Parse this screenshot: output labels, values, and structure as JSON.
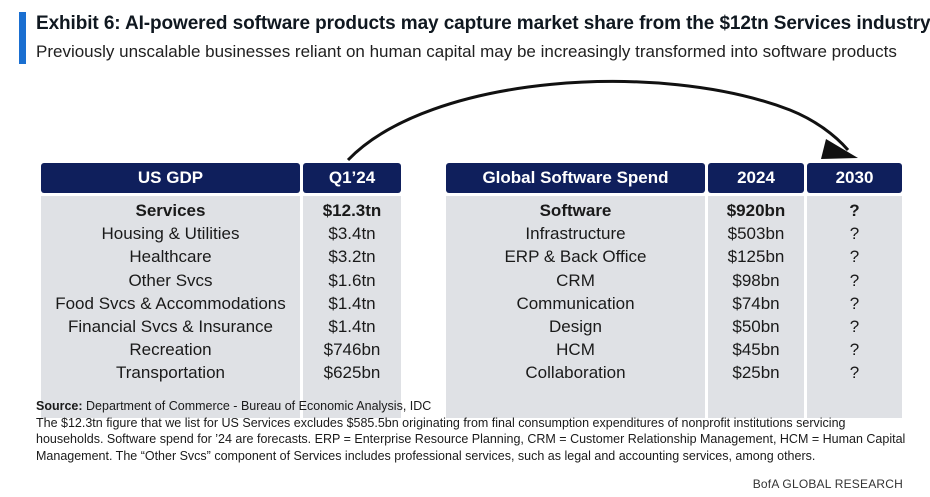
{
  "header": {
    "title": "Exhibit 6: AI-powered software products may capture market share from the $12tn Services industry",
    "subtitle": "Previously unscalable businesses reliant on human capital may be increasingly transformed into software products",
    "accent_color": "#1a6fd1"
  },
  "chart_data": [
    {
      "type": "table",
      "columns": [
        "US GDP",
        "Q1’24"
      ],
      "rows": [
        {
          "label": "Services",
          "value": "$12.3tn",
          "bold": true
        },
        {
          "label": "Housing & Utilities",
          "value": "$3.4tn"
        },
        {
          "label": "Healthcare",
          "value": "$3.2tn"
        },
        {
          "label": "Other Svcs",
          "value": "$1.6tn"
        },
        {
          "label": "Food Svcs & Accommodations",
          "value": "$1.4tn"
        },
        {
          "label": "Financial Svcs & Insurance",
          "value": "$1.4tn"
        },
        {
          "label": "Recreation",
          "value": "$746bn"
        },
        {
          "label": "Transportation",
          "value": "$625bn"
        }
      ]
    },
    {
      "type": "table",
      "columns": [
        "Global Software Spend",
        "2024",
        "2030"
      ],
      "rows": [
        {
          "label": "Software",
          "value": "$920bn",
          "future": "?",
          "bold": true
        },
        {
          "label": "Infrastructure",
          "value": "$503bn",
          "future": "?"
        },
        {
          "label": "ERP & Back Office",
          "value": "$125bn",
          "future": "?"
        },
        {
          "label": "CRM",
          "value": "$98bn",
          "future": "?"
        },
        {
          "label": "Communication",
          "value": "$74bn",
          "future": "?"
        },
        {
          "label": "Design",
          "value": "$50bn",
          "future": "?"
        },
        {
          "label": "HCM",
          "value": "$45bn",
          "future": "?"
        },
        {
          "label": "Collaboration",
          "value": "$25bn",
          "future": "?"
        }
      ]
    }
  ],
  "colors": {
    "header_fill": "#0f1f5c",
    "body_fill": "#dfe1e5",
    "arrow": "#111111"
  },
  "footer": {
    "source_label": "Source:",
    "source_text": "Department of Commerce - Bureau of Economic Analysis, IDC",
    "note": "The $12.3tn figure that we list for US Services excludes $585.5bn originating from final consumption expenditures of nonprofit institutions servicing households. Software spend for ’24 are forecasts. ERP = Enterprise Resource Planning, CRM = Customer Relationship Management, HCM = Human Capital Management. The “Other Svcs” component of Services includes professional services, such as legal and accounting services, among others.",
    "brand": "BofA GLOBAL RESEARCH"
  }
}
